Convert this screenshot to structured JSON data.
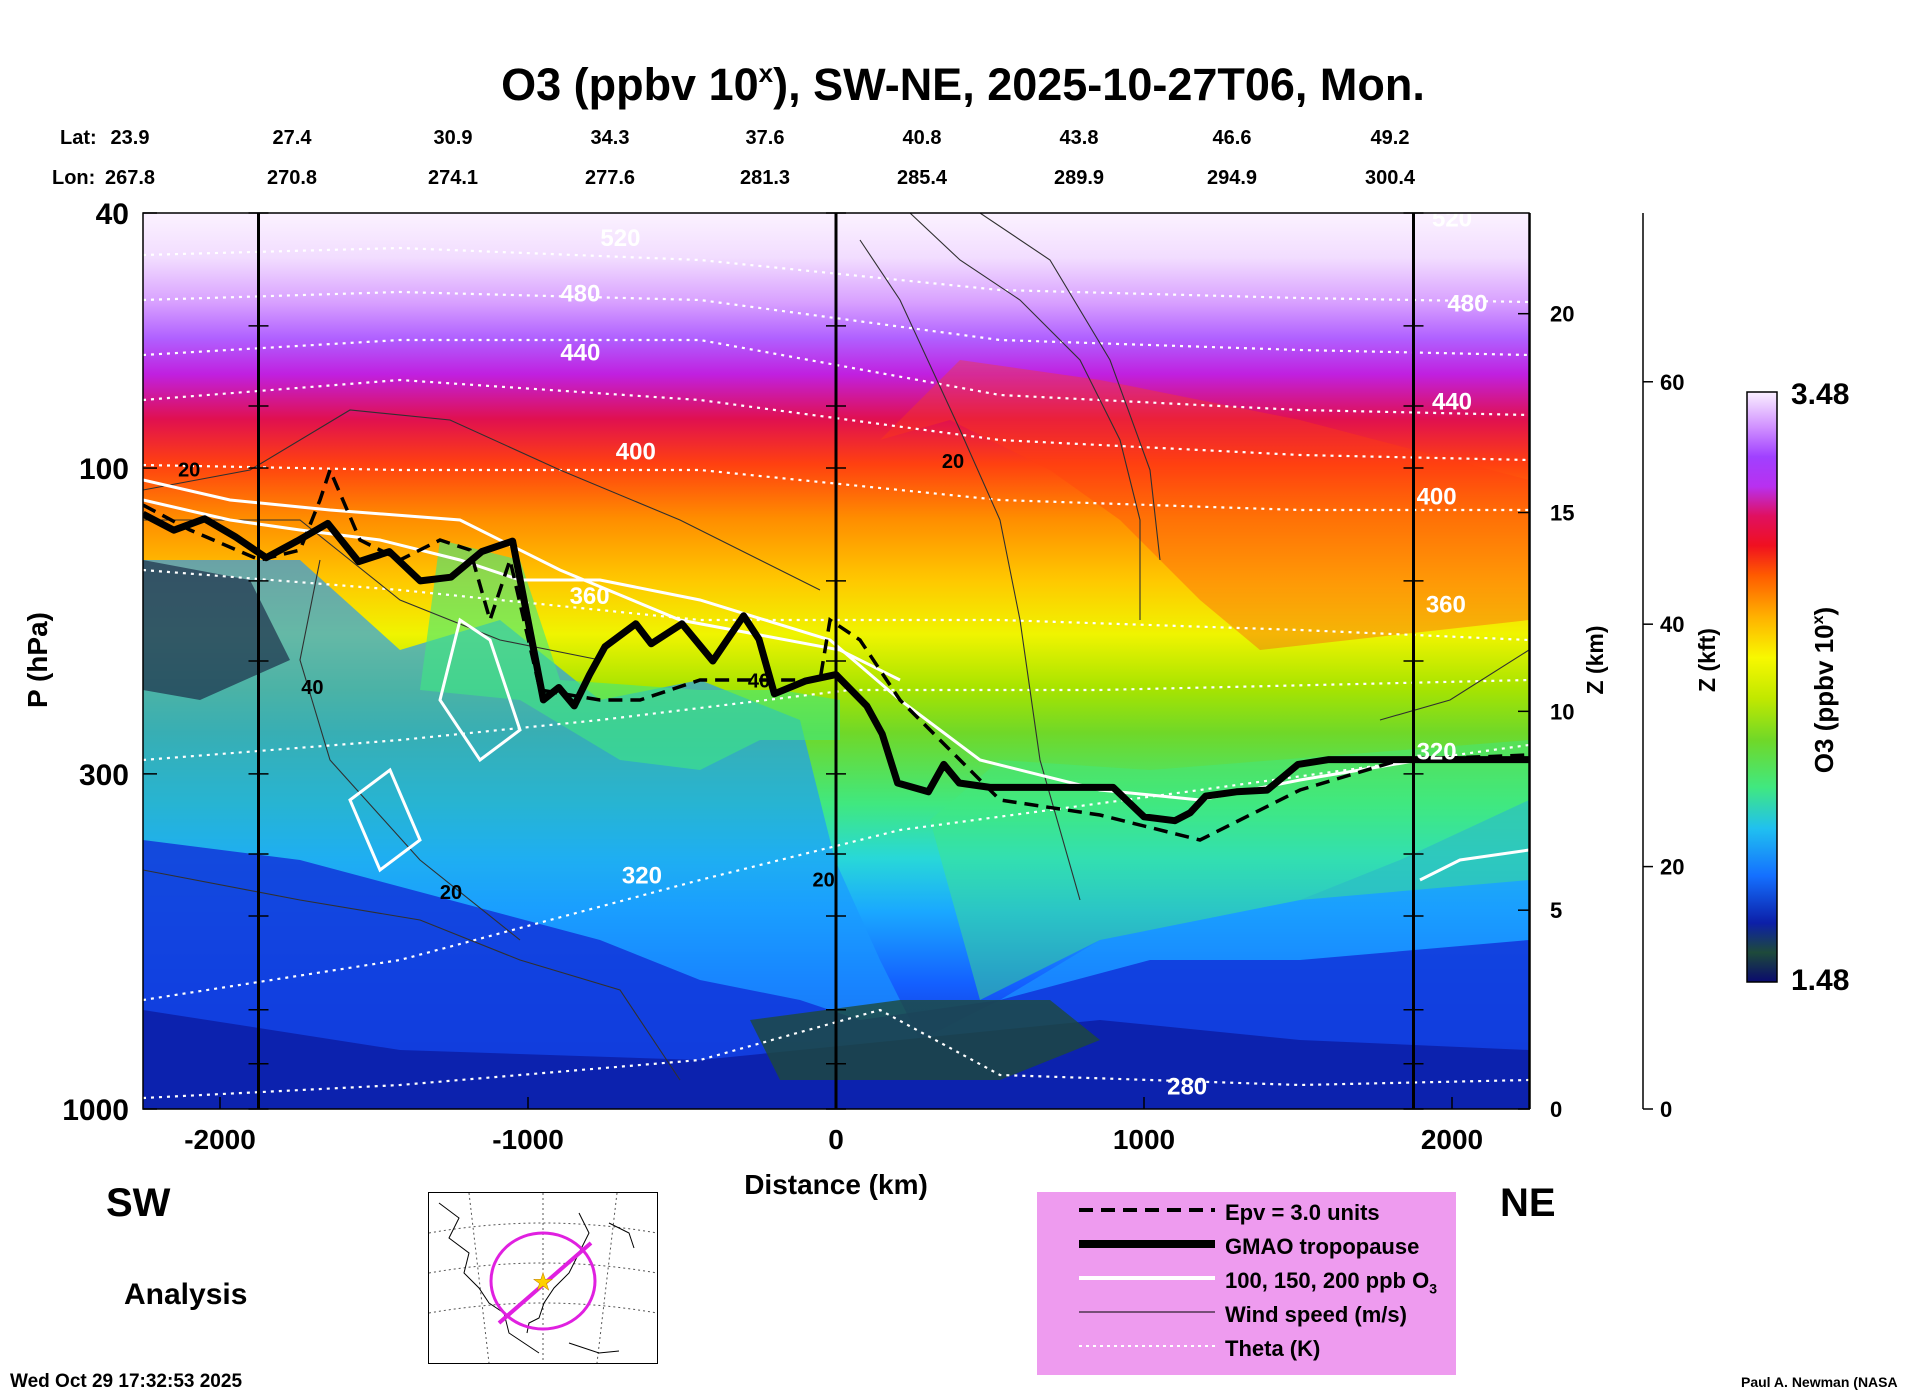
{
  "title": {
    "main": "O3 (ppbv 10",
    "sup": "x",
    "rest": "), SW-NE, 2025-10-27T06, Mon."
  },
  "header": {
    "lat_label": "Lat:",
    "lon_label": "Lon:",
    "lat": [
      "23.9",
      "27.4",
      "30.9",
      "34.3",
      "37.6",
      "40.8",
      "43.8",
      "46.6",
      "49.2"
    ],
    "lon": [
      "267.8",
      "270.8",
      "274.1",
      "277.6",
      "281.3",
      "285.4",
      "289.9",
      "294.9",
      "300.4"
    ]
  },
  "labels": {
    "sw": "SW",
    "ne": "NE",
    "analysis": "Analysis",
    "timestamp": "Wed Oct 29 17:32:53 2025",
    "credit": "Paul A. Newman (NASA"
  },
  "legend": [
    {
      "style": "dashed",
      "label": "Epv = 3.0 units"
    },
    {
      "style": "thick",
      "label": "GMAO tropopause"
    },
    {
      "style": "white",
      "label": "100, 150, 200 ppb O",
      "sub": "3"
    },
    {
      "style": "thin",
      "label": "Wind speed (m/s)"
    },
    {
      "style": "dotted",
      "label": "Theta (K)"
    }
  ],
  "colors": {
    "legend_bg": "#ee9bef",
    "map_circle": "#e020e0",
    "map_star": "#ffd000"
  },
  "colorbar": {
    "label": "O3 (ppbv 10",
    "sup": "x",
    "close": ")",
    "max": "3.48",
    "min": "1.48",
    "colors": [
      "#0a0a6e",
      "#1c2f4a",
      "#1e4a3a",
      "#0c1fa8",
      "#1030d8",
      "#1048ff",
      "#1470ff",
      "#1a98ff",
      "#20c0f0",
      "#28d8d8",
      "#30e0b0",
      "#40e880",
      "#50e050",
      "#70d828",
      "#98e000",
      "#c0e800",
      "#e0f000",
      "#f8f800",
      "#ffe000",
      "#ffc800",
      "#ffb000",
      "#ff9800",
      "#ff7800",
      "#ff5a00",
      "#ff3010",
      "#f01020",
      "#e01060",
      "#d020c0",
      "#b830f0",
      "#a040ff",
      "#b050ff",
      "#c070ff",
      "#d090ff",
      "#e0b0ff",
      "#eac8ff",
      "#f2ddff",
      "#faefff"
    ]
  },
  "chart_data": {
    "type": "heatmap",
    "title": "O3 (ppbv 10^x), SW-NE, 2025-10-27T06, Mon.",
    "xlabel": "Distance (km)",
    "ylabel": "P (hPa)",
    "xlim": [
      -2250,
      2250
    ],
    "ylim": [
      1000,
      40
    ],
    "y_scale": "log",
    "x_ticks": [
      -2000,
      -1000,
      0,
      1000,
      2000
    ],
    "x_tick_labels": [
      "-2000",
      "-1000",
      "0",
      "1000",
      "2000"
    ],
    "y_ticks": [
      40,
      100,
      300,
      1000
    ],
    "y_tick_labels": [
      "40",
      "100",
      "300",
      "1000"
    ],
    "z_km_label": "Z (km)",
    "z_km_ticks": [
      0,
      5,
      10,
      15,
      20
    ],
    "z_km_tick_labels": [
      "0",
      "5",
      "10",
      "15",
      "20"
    ],
    "z_kft_label": "Z (kft)",
    "z_kft_ticks": [
      0,
      20,
      40,
      60
    ],
    "z_kft_tick_labels": [
      "0",
      "20",
      "40",
      "60"
    ],
    "colorbar_range": [
      1.48,
      3.48
    ],
    "vertical_lines_km": [
      -1875,
      0,
      1875
    ],
    "tropopause": {
      "x": [
        -2250,
        -2150,
        -2050,
        -1950,
        -1850,
        -1750,
        -1650,
        -1550,
        -1450,
        -1350,
        -1250,
        -1150,
        -1050,
        -950,
        -900,
        -850,
        -800,
        -750,
        -650,
        -600,
        -500,
        -400,
        -300,
        -250,
        -200,
        -100,
        0,
        100,
        150,
        200,
        300,
        350,
        400,
        500,
        600,
        700,
        800,
        900,
        1000,
        1100,
        1150,
        1200,
        1300,
        1400,
        1500,
        1600,
        2000,
        2250
      ],
      "p": [
        118,
        125,
        120,
        128,
        138,
        130,
        122,
        140,
        135,
        150,
        148,
        135,
        130,
        230,
        220,
        235,
        210,
        190,
        175,
        188,
        175,
        200,
        170,
        185,
        225,
        215,
        210,
        235,
        260,
        310,
        320,
        290,
        310,
        315,
        315,
        315,
        315,
        315,
        350,
        355,
        345,
        325,
        320,
        318,
        290,
        285,
        285,
        285
      ]
    },
    "theta": {
      "levels": [
        280,
        320,
        360,
        400,
        440,
        480,
        520
      ],
      "labels": [
        "280",
        "320",
        "360",
        "400",
        "440",
        "480",
        "520"
      ],
      "label_positions": [
        {
          "x": 1140,
          "p": 950,
          "level": "280"
        },
        {
          "x": -630,
          "p": 445,
          "level": "320"
        },
        {
          "x": -800,
          "p": 163,
          "level": "360"
        },
        {
          "x": -650,
          "p": 97,
          "level": "400"
        },
        {
          "x": -830,
          "p": 68,
          "level": "440"
        },
        {
          "x": -830,
          "p": 55,
          "level": "480"
        },
        {
          "x": -700,
          "p": 45,
          "level": "520"
        },
        {
          "x": 2000,
          "p": 81,
          "level": "440"
        },
        {
          "x": 1950,
          "p": 114,
          "level": "400"
        },
        {
          "x": 1980,
          "p": 168,
          "level": "360"
        },
        {
          "x": 1950,
          "p": 285,
          "level": "320"
        },
        {
          "x": 2050,
          "p": 57,
          "level": "480"
        },
        {
          "x": 2000,
          "p": 42,
          "level": "520"
        }
      ]
    },
    "wind_labels": [
      {
        "x": -2100,
        "p": 103,
        "level": "20"
      },
      {
        "x": -1700,
        "p": 225,
        "level": "40"
      },
      {
        "x": -1250,
        "p": 470,
        "level": "20"
      },
      {
        "x": -250,
        "p": 220,
        "level": "40"
      },
      {
        "x": -40,
        "p": 450,
        "level": "20"
      },
      {
        "x": 380,
        "p": 100,
        "level": "20"
      }
    ],
    "x_label_positions": [
      {
        "x": -2000,
        "lat": "23.9",
        "lon": "267.8"
      },
      {
        "x": -1300,
        "lat": "27.4",
        "lon": "270.8"
      },
      {
        "x": -750,
        "lat": "30.9",
        "lon": "274.1"
      },
      {
        "x": -200,
        "lat": "34.3",
        "lon": "277.6"
      },
      {
        "x": 350,
        "lat": "37.6",
        "lon": "281.3"
      },
      {
        "x": 880,
        "lat": "40.8",
        "lon": "285.4"
      },
      {
        "x": 1380,
        "lat": "43.8",
        "lon": "289.9"
      },
      {
        "x": 1900,
        "lat": "46.6",
        "lon": "294.9"
      },
      {
        "x": 2400,
        "lat": "49.2",
        "lon": "300.4"
      }
    ]
  }
}
